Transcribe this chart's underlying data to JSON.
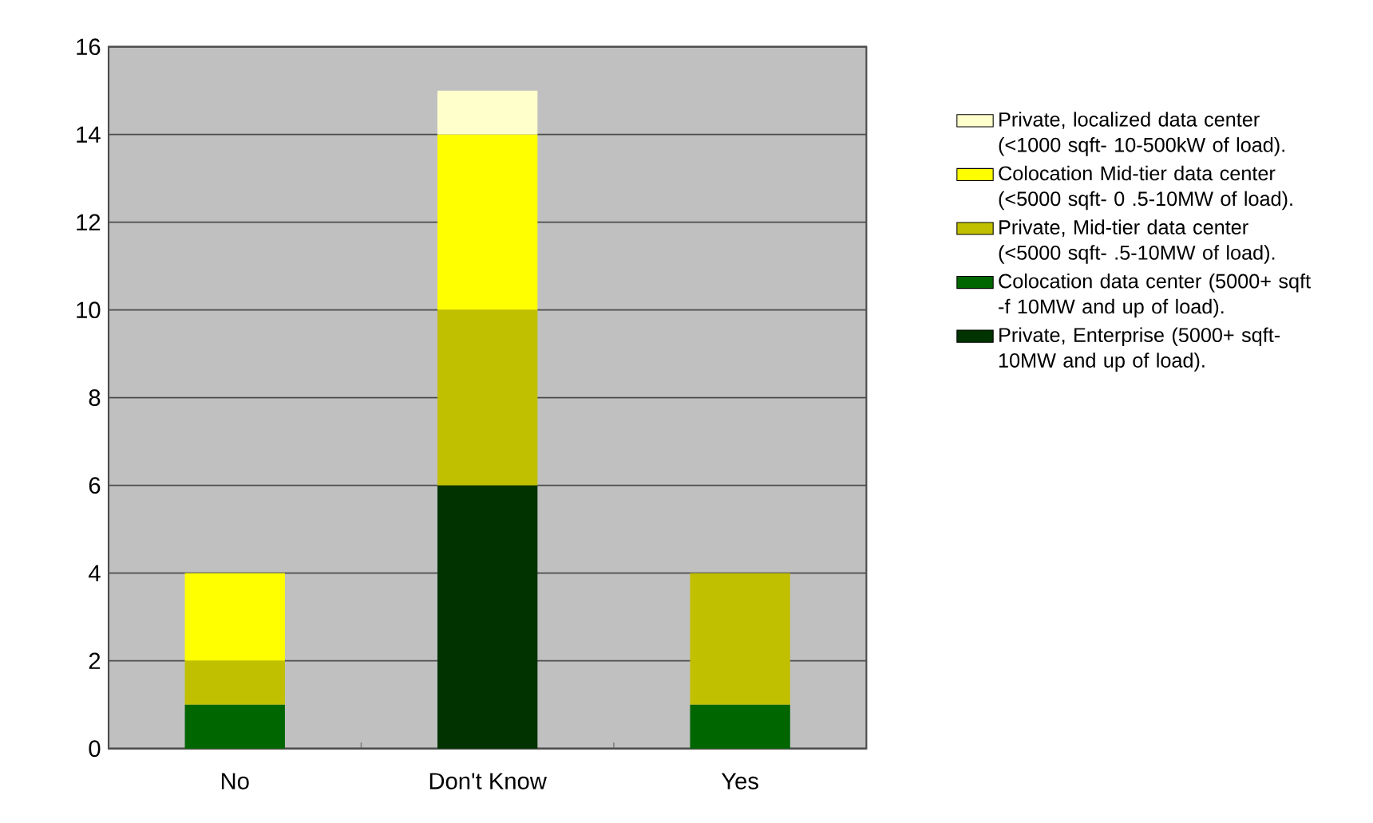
{
  "chart_data": {
    "type": "bar",
    "stacked": true,
    "categories": [
      "No",
      "Don't Know",
      "Yes"
    ],
    "series": [
      {
        "name": "Private, Enterprise  (5000+ sqft- 10MW and up of load).",
        "color": "#003300",
        "values": [
          0,
          6,
          0
        ]
      },
      {
        "name": "Colocation data center (5000+ sqft -f 10MW and up of load).",
        "color": "#006600",
        "values": [
          1,
          0,
          1
        ]
      },
      {
        "name": "Private, Mid-tier data center (<5000 sqft-  .5-10MW of load).",
        "color": "#c0c000",
        "values": [
          1,
          4,
          3
        ]
      },
      {
        "name": "Colocation Mid-tier data center (<5000 sqft- 0 .5-10MW of load).",
        "color": "#ffff00",
        "values": [
          2,
          4,
          0
        ]
      },
      {
        "name": "Private, localized data center (<1000 sqft- 10-500kW of load).",
        "color": "#ffffcc",
        "values": [
          0,
          1,
          0
        ]
      }
    ],
    "ylim": [
      0,
      16
    ],
    "yticks": [
      0,
      2,
      4,
      6,
      8,
      10,
      12,
      14,
      16
    ],
    "grid": "y",
    "legend": "right"
  }
}
